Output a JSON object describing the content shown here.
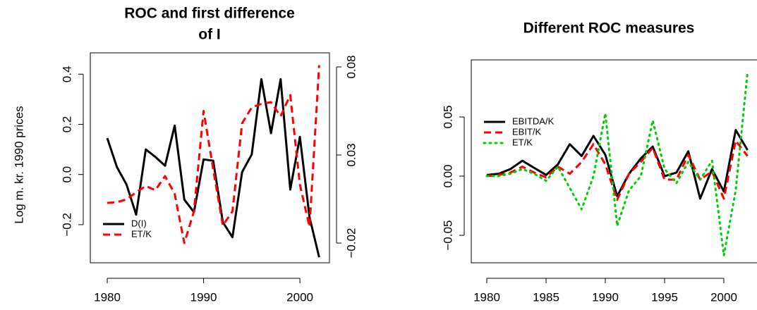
{
  "chart_data": [
    {
      "type": "line",
      "title_lines": [
        "ROC and first difference",
        "of I"
      ],
      "ylabel": "Log m. kr. 1990 prices",
      "x": [
        1980,
        1981,
        1982,
        1983,
        1984,
        1985,
        1986,
        1987,
        1988,
        1989,
        1990,
        1991,
        1992,
        1993,
        1994,
        1995,
        1996,
        1997,
        1998,
        1999,
        2000,
        2001,
        2002
      ],
      "xlim": [
        1978.24,
        2003.07
      ],
      "xticks": [
        1980,
        1990,
        2000
      ],
      "ylim": [
        -0.352,
        0.485
      ],
      "yticks": [
        {
          "value": -0.2,
          "label": "−0.2"
        },
        {
          "value": 0,
          "label": "0.0"
        },
        {
          "value": 0.2,
          "label": "0.2"
        },
        {
          "value": 0.4,
          "label": "0.4"
        }
      ],
      "y2lim": [
        -0.0312,
        0.088
      ],
      "y2ticks": [
        {
          "value": -0.02,
          "label": "−0.02"
        },
        {
          "value": 0.03,
          "label": "0.03"
        },
        {
          "value": 0.08,
          "label": "0.08"
        }
      ],
      "legend": "bottomleft",
      "series": [
        {
          "name": "D(I)",
          "color": "#000000",
          "linestyle": "solid",
          "values": [
            0.145,
            0.03,
            -0.04,
            -0.16,
            0.1,
            0.07,
            0.035,
            0.195,
            -0.1,
            -0.15,
            0.06,
            0.055,
            -0.19,
            -0.25,
            0.01,
            0.08,
            0.38,
            0.165,
            0.38,
            -0.06,
            0.15,
            -0.17,
            -0.33
          ]
        },
        {
          "name": "ET/K",
          "color": "#ff0000",
          "linestyle": "dashed",
          "axis": "y2",
          "values": [
            0.0028,
            0.0032,
            0.0048,
            0.0088,
            0.0124,
            0.01,
            0.018,
            0.008,
            -0.02,
            -0.002,
            0.055,
            0.022,
            -0.01,
            -0.002,
            0.048,
            0.057,
            0.059,
            0.06,
            0.052,
            0.064,
            0.0132,
            -0.0108,
            0.081
          ]
        }
      ]
    },
    {
      "type": "line",
      "title_lines": [
        "Different ROC measures"
      ],
      "x": [
        1980,
        1981,
        1982,
        1983,
        1984,
        1985,
        1986,
        1987,
        1988,
        1989,
        1990,
        1991,
        1992,
        1993,
        1994,
        1995,
        1996,
        1997,
        1998,
        1999,
        2000,
        2001,
        2002
      ],
      "xlim": [
        1978.69,
        2002.88
      ],
      "xticks": [
        1980,
        1985,
        1990,
        1995,
        2000
      ],
      "ylim": [
        -0.0732,
        0.0982
      ],
      "yticks": [
        {
          "value": -0.05,
          "label": "−0.05"
        },
        {
          "value": 0,
          "label": "0.00"
        },
        0.05
      ],
      "legend": "topleft",
      "series": [
        {
          "name": "EBITDA/K",
          "color": "#000000",
          "linestyle": "solid",
          "values": [
            0.001,
            0.002,
            0.006,
            0.013,
            0.007,
            0.001,
            0.01,
            0.027,
            0.017,
            0.034,
            0.018,
            -0.017,
            0.002,
            0.015,
            0.025,
            0.0,
            0.003,
            0.021,
            -0.019,
            0.006,
            -0.013,
            0.039,
            0.022
          ]
        },
        {
          "name": "EBIT/K",
          "color": "#ff0000",
          "linestyle": "dashed",
          "values": [
            0.0,
            0.001,
            0.003,
            0.008,
            0.003,
            -0.001,
            0.008,
            0.002,
            0.012,
            0.027,
            0.01,
            -0.02,
            0.002,
            0.012,
            0.024,
            -0.003,
            -0.003,
            0.018,
            -0.003,
            0.004,
            -0.019,
            0.03,
            0.017
          ]
        },
        {
          "name": "ET/K",
          "color": "#00cd00",
          "linestyle": "dotted",
          "values": [
            0.0,
            0.0,
            0.002,
            0.006,
            0.002,
            -0.004,
            0.008,
            -0.01,
            -0.028,
            0.0,
            0.053,
            -0.042,
            -0.012,
            0.0,
            0.047,
            0.006,
            -0.006,
            0.012,
            -0.003,
            0.013,
            -0.067,
            -0.012,
            0.088
          ]
        }
      ]
    }
  ]
}
